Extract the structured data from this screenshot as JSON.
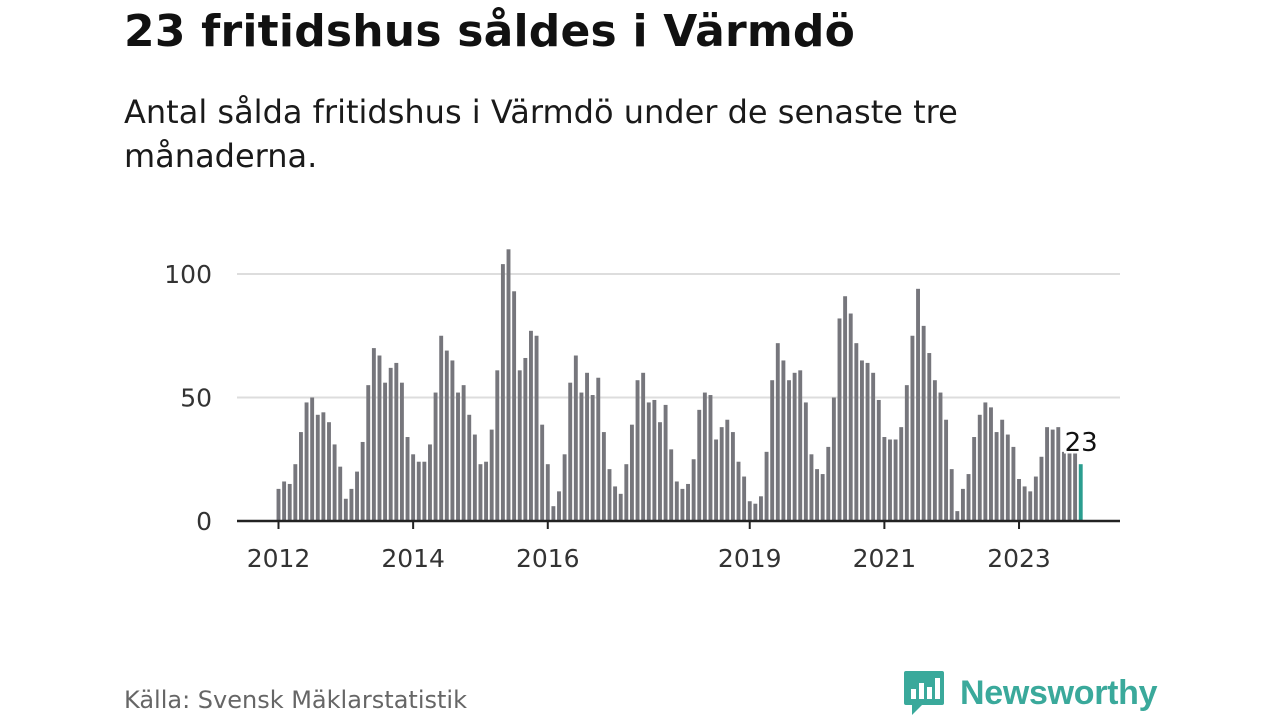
{
  "title": "23 fritidshus såldes i Värmdö",
  "subtitle": "Antal sålda fritidshus i Värmdö under de senaste tre månaderna.",
  "source": "Källa: Svensk Mäklarstatistik",
  "brand": {
    "name": "Newsworthy",
    "logo_icon": "bar-chart-bubble-icon",
    "color": "#3aa99b"
  },
  "colors": {
    "bar": "#76767c",
    "highlight": "#2a9d8f",
    "axis": "#222222",
    "grid": "#dddddd"
  },
  "chart_data": {
    "type": "bar",
    "title": "",
    "xlabel": "",
    "ylabel": "",
    "ylim": [
      0,
      110
    ],
    "yticks": [
      "0",
      "50",
      "100"
    ],
    "ytick_values": [
      0,
      50,
      100
    ],
    "xticks": [
      "2012",
      "2014",
      "2016",
      "2019",
      "2021",
      "2023"
    ],
    "xtick_dates": [
      "2012-01",
      "2014-01",
      "2016-01",
      "2019-01",
      "2021-01",
      "2023-01"
    ],
    "grid": true,
    "legend": "none",
    "annotation": {
      "label": "23",
      "x": "2023-12",
      "value": 23
    },
    "x": [
      "2012-01",
      "2012-02",
      "2012-03",
      "2012-04",
      "2012-05",
      "2012-06",
      "2012-07",
      "2012-08",
      "2012-09",
      "2012-10",
      "2012-11",
      "2012-12",
      "2013-01",
      "2013-02",
      "2013-03",
      "2013-04",
      "2013-05",
      "2013-06",
      "2013-07",
      "2013-08",
      "2013-09",
      "2013-10",
      "2013-11",
      "2013-12",
      "2014-01",
      "2014-02",
      "2014-03",
      "2014-04",
      "2014-05",
      "2014-06",
      "2014-07",
      "2014-08",
      "2014-09",
      "2014-10",
      "2014-11",
      "2014-12",
      "2015-01",
      "2015-02",
      "2015-03",
      "2015-04",
      "2015-05",
      "2015-06",
      "2015-07",
      "2015-08",
      "2015-09",
      "2015-10",
      "2015-11",
      "2015-12",
      "2016-01",
      "2016-02",
      "2016-03",
      "2016-04",
      "2016-05",
      "2016-06",
      "2016-07",
      "2016-08",
      "2016-09",
      "2016-10",
      "2016-11",
      "2016-12",
      "2017-01",
      "2017-02",
      "2017-03",
      "2017-04",
      "2017-05",
      "2017-06",
      "2017-07",
      "2017-08",
      "2017-09",
      "2017-10",
      "2017-11",
      "2017-12",
      "2018-01",
      "2018-02",
      "2018-03",
      "2018-04",
      "2018-05",
      "2018-06",
      "2018-07",
      "2018-08",
      "2018-09",
      "2018-10",
      "2018-11",
      "2018-12",
      "2019-01",
      "2019-02",
      "2019-03",
      "2019-04",
      "2019-05",
      "2019-06",
      "2019-07",
      "2019-08",
      "2019-09",
      "2019-10",
      "2019-11",
      "2019-12",
      "2020-01",
      "2020-02",
      "2020-03",
      "2020-04",
      "2020-05",
      "2020-06",
      "2020-07",
      "2020-08",
      "2020-09",
      "2020-10",
      "2020-11",
      "2020-12",
      "2021-01",
      "2021-02",
      "2021-03",
      "2021-04",
      "2021-05",
      "2021-06",
      "2021-07",
      "2021-08",
      "2021-09",
      "2021-10",
      "2021-11",
      "2021-12",
      "2022-01",
      "2022-02",
      "2022-03",
      "2022-04",
      "2022-05",
      "2022-06",
      "2022-07",
      "2022-08",
      "2022-09",
      "2022-10",
      "2022-11",
      "2022-12",
      "2023-01",
      "2023-02",
      "2023-03",
      "2023-04",
      "2023-05",
      "2023-06",
      "2023-07",
      "2023-08",
      "2023-09",
      "2023-10",
      "2023-11",
      "2023-12"
    ],
    "values": [
      13,
      16,
      15,
      23,
      36,
      48,
      50,
      43,
      44,
      40,
      31,
      22,
      9,
      13,
      20,
      32,
      55,
      70,
      67,
      56,
      62,
      64,
      56,
      34,
      27,
      24,
      24,
      31,
      52,
      75,
      69,
      65,
      52,
      55,
      43,
      35,
      23,
      24,
      37,
      61,
      104,
      110,
      93,
      61,
      66,
      77,
      75,
      39,
      23,
      6,
      12,
      27,
      56,
      67,
      52,
      60,
      51,
      58,
      36,
      21,
      14,
      11,
      23,
      39,
      57,
      60,
      48,
      49,
      40,
      47,
      29,
      16,
      13,
      15,
      25,
      45,
      52,
      51,
      33,
      38,
      41,
      36,
      24,
      18,
      8,
      7,
      10,
      28,
      57,
      72,
      65,
      57,
      60,
      61,
      48,
      27,
      21,
      19,
      30,
      50,
      82,
      91,
      84,
      72,
      65,
      64,
      60,
      49,
      34,
      33,
      33,
      38,
      55,
      75,
      94,
      79,
      68,
      57,
      52,
      41,
      21,
      4,
      13,
      19,
      34,
      43,
      48,
      46,
      36,
      41,
      35,
      30,
      17,
      14,
      12,
      18,
      26,
      38,
      37,
      38,
      28,
      28,
      28,
      23
    ]
  }
}
